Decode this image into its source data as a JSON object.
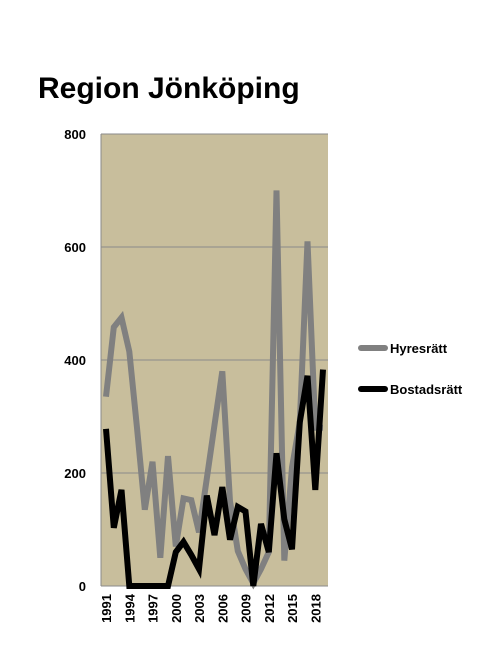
{
  "chart_data": {
    "type": "line",
    "title": "Region Jönköping",
    "xlabel": "",
    "ylabel": "",
    "ylim": [
      0,
      800
    ],
    "yticks": [
      0,
      200,
      400,
      600,
      800
    ],
    "xticks": [
      "1991",
      "1994",
      "1997",
      "2000",
      "2003",
      "2006",
      "2009",
      "2012",
      "2015",
      "2018"
    ],
    "grid": true,
    "plot_background": "#c8be9c",
    "legend_position": "right",
    "x": [
      1991,
      1992,
      1993,
      1994,
      1995,
      1996,
      1997,
      1998,
      1999,
      2000,
      2001,
      2002,
      2003,
      2004,
      2005,
      2006,
      2007,
      2008,
      2009,
      2010,
      2011,
      2012,
      2013,
      2014,
      2015,
      2016,
      2017,
      2018,
      2019
    ],
    "series": [
      {
        "name": "Hyresrätt",
        "color": "#808080",
        "values": [
          335,
          458,
          475,
          415,
          280,
          135,
          220,
          50,
          230,
          70,
          155,
          152,
          95,
          190,
          285,
          380,
          150,
          62,
          30,
          5,
          30,
          60,
          700,
          45,
          210,
          290,
          610,
          280,
          280
        ]
      },
      {
        "name": "Bostadsrätt",
        "color": "#000000",
        "values": [
          278,
          103,
          170,
          0,
          0,
          0,
          0,
          0,
          0,
          60,
          78,
          55,
          30,
          160,
          90,
          175,
          82,
          140,
          132,
          0,
          110,
          60,
          235,
          118,
          65,
          290,
          372,
          170,
          383
        ]
      }
    ]
  }
}
